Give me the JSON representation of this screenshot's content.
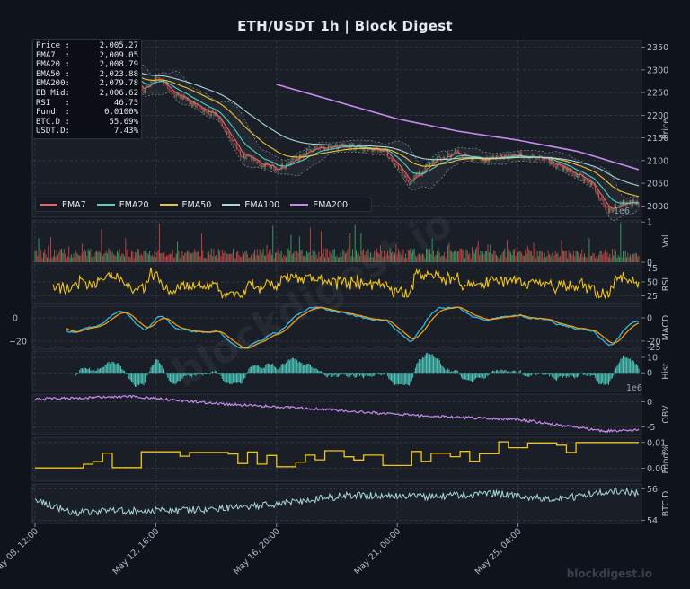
{
  "title": "ETH/USDT  1h  |  Block Digest",
  "watermark": "blockdigest.io",
  "info_box": [
    {
      "label": "Price :",
      "value": "2,005.27"
    },
    {
      "label": "EMA7  :",
      "value": "2,009.05"
    },
    {
      "label": "EMA20 :",
      "value": "2,008.79"
    },
    {
      "label": "EMA50 :",
      "value": "2,023.88"
    },
    {
      "label": "EMA200:",
      "value": "2,079.78"
    },
    {
      "label": "BB Mid:",
      "value": "2,006.62"
    },
    {
      "label": "RSI   :",
      "value": "46.73"
    },
    {
      "label": "Fund  :",
      "value": "0.0100%"
    },
    {
      "label": "BTC.D :",
      "value": "55.69%"
    },
    {
      "label": "USDT.D:",
      "value": "7.43%"
    }
  ],
  "legend": [
    {
      "name": "EMA7",
      "color": "#e8636b"
    },
    {
      "name": "EMA20",
      "color": "#4fd1c5"
    },
    {
      "name": "EMA50",
      "color": "#f0c43a"
    },
    {
      "name": "EMA100",
      "color": "#a8d8d8"
    },
    {
      "name": "EMA200",
      "color": "#c58af0"
    }
  ],
  "colors": {
    "up": "#3cb371",
    "down": "#e04848",
    "rsi": "#f0c419",
    "macd": "#2eb8e6",
    "signal": "#f39c12",
    "hist": "#4fd1c5",
    "obv": "#c58af0",
    "fund": "#f0c419",
    "btcd": "#a8d8d8"
  },
  "chart_data": [
    {
      "type": "line",
      "panel": "Price",
      "ylabel": "Price",
      "yticks": [
        2000,
        2050,
        2100,
        2150,
        2200,
        2250,
        2300,
        2350
      ],
      "ylim": [
        1975,
        2365
      ],
      "xlim": [
        "2023-05-08 12:00",
        "2023-05-29 08:00"
      ],
      "x_tick_labels": [
        "May 08, 12:00",
        "May 12, 16:00",
        "May 16, 20:00",
        "May 21, 00:00",
        "May 25, 04:00"
      ],
      "x_tick_hours": [
        0,
        100,
        200,
        300,
        400
      ],
      "total_hours": 500,
      "close_anchor_hours": [
        0,
        15,
        30,
        50,
        70,
        90,
        100,
        115,
        130,
        150,
        170,
        200,
        230,
        260,
        290,
        310,
        330,
        350,
        370,
        385,
        400,
        420,
        440,
        460,
        475,
        490,
        500
      ],
      "close_anchor_values": [
        2330,
        2310,
        2282,
        2272,
        2300,
        2255,
        2282,
        2248,
        2225,
        2198,
        2112,
        2080,
        2125,
        2132,
        2122,
        2050,
        2100,
        2118,
        2098,
        2108,
        2112,
        2108,
        2080,
        2052,
        1990,
        2010,
        2005
      ],
      "series": [
        {
          "name": "EMA7"
        },
        {
          "name": "EMA20"
        },
        {
          "name": "EMA50"
        },
        {
          "name": "EMA100"
        },
        {
          "name": "EMA200",
          "start_hour": 200,
          "anchor_hours": [
            200,
            250,
            300,
            350,
            400,
            450,
            500
          ],
          "anchor_values": [
            2268,
            2230,
            2192,
            2165,
            2145,
            2120,
            2080
          ]
        }
      ]
    },
    {
      "type": "bar",
      "panel": "Vol",
      "ylabel": "Vol",
      "yticks": [
        0,
        1
      ],
      "ylim": [
        0,
        1.05
      ],
      "unit_label": "1e6"
    },
    {
      "type": "line",
      "panel": "RSI",
      "ylabel": "RSI",
      "yticks": [
        25,
        50,
        75
      ],
      "ylim": [
        10,
        82
      ]
    },
    {
      "type": "line",
      "panel": "MACD",
      "ylabel": "MACD",
      "yticks": [
        0,
        -20,
        -25
      ],
      "ylim": [
        -27,
        10
      ],
      "series": [
        {
          "name": "MACD"
        },
        {
          "name": "Signal"
        }
      ]
    },
    {
      "type": "bar",
      "panel": "Hist",
      "ylabel": "Hist",
      "yticks": [
        0,
        10
      ],
      "ylim": [
        -12,
        14
      ]
    },
    {
      "type": "line",
      "panel": "OBV",
      "ylabel": "OBV",
      "yticks": [
        0,
        -5
      ],
      "ylim": [
        -6.5,
        1.5
      ],
      "unit_label": "1e6",
      "anchor_hours": [
        0,
        80,
        160,
        240,
        320,
        400,
        470,
        500
      ],
      "anchor_values": [
        0.5,
        1.0,
        -0.5,
        -1.5,
        -2.8,
        -3.5,
        -5.8,
        -5.6
      ]
    },
    {
      "type": "line",
      "panel": "Fund%",
      "ylabel": "Fund%",
      "yticks": [
        0.0,
        0.01
      ],
      "ylim": [
        -0.005,
        0.012
      ]
    },
    {
      "type": "line",
      "panel": "BTC.D",
      "ylabel": "BTC.D",
      "yticks": [
        54,
        56
      ],
      "ylim": [
        53.8,
        56.3
      ],
      "anchor_hours": [
        0,
        30,
        80,
        120,
        200,
        260,
        330,
        380,
        430,
        480,
        500
      ],
      "anchor_values": [
        55.3,
        54.5,
        54.6,
        54.6,
        55.0,
        55.6,
        55.5,
        55.7,
        55.3,
        55.9,
        55.7
      ]
    }
  ]
}
